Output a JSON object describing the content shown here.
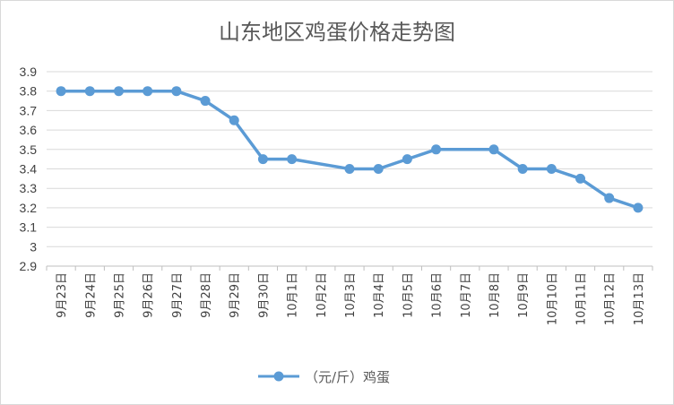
{
  "chart_data": {
    "type": "line",
    "title": "山东地区鸡蛋价格走势图",
    "xlabel": "",
    "ylabel": "",
    "categories": [
      "9月23日",
      "9月24日",
      "9月25日",
      "9月26日",
      "9月27日",
      "9月28日",
      "9月29日",
      "9月30日",
      "10月1日",
      "10月2日",
      "10月3日",
      "10月4日",
      "10月5日",
      "10月6日",
      "10月7日",
      "10月8日",
      "10月9日",
      "10月10日",
      "10月11日",
      "10月12日",
      "10月13日"
    ],
    "yticks": [
      "2.9",
      "3",
      "3.1",
      "3.2",
      "3.3",
      "3.4",
      "3.5",
      "3.6",
      "3.7",
      "3.8",
      "3.9"
    ],
    "ylim": [
      2.9,
      3.9
    ],
    "grid": true,
    "legend_position": "bottom",
    "series": [
      {
        "name": "（元/斤）鸡蛋",
        "color": "#5b9bd5",
        "points": [
          {
            "category": "9月23日",
            "value": 3.8
          },
          {
            "category": "9月24日",
            "value": 3.8
          },
          {
            "category": "9月25日",
            "value": 3.8
          },
          {
            "category": "9月26日",
            "value": 3.8
          },
          {
            "category": "9月27日",
            "value": 3.8
          },
          {
            "category": "9月28日",
            "value": 3.75
          },
          {
            "category": "9月29日",
            "value": 3.65
          },
          {
            "category": "9月30日",
            "value": 3.45
          },
          {
            "category": "10月1日",
            "value": 3.45
          },
          {
            "category": "10月3日",
            "value": 3.4
          },
          {
            "category": "10月4日",
            "value": 3.4
          },
          {
            "category": "10月5日",
            "value": 3.45
          },
          {
            "category": "10月6日",
            "value": 3.5
          },
          {
            "category": "10月8日",
            "value": 3.5
          },
          {
            "category": "10月9日",
            "value": 3.4
          },
          {
            "category": "10月10日",
            "value": 3.4
          },
          {
            "category": "10月11日",
            "value": 3.35
          },
          {
            "category": "10月12日",
            "value": 3.25
          },
          {
            "category": "10月13日",
            "value": 3.2
          }
        ]
      }
    ]
  }
}
